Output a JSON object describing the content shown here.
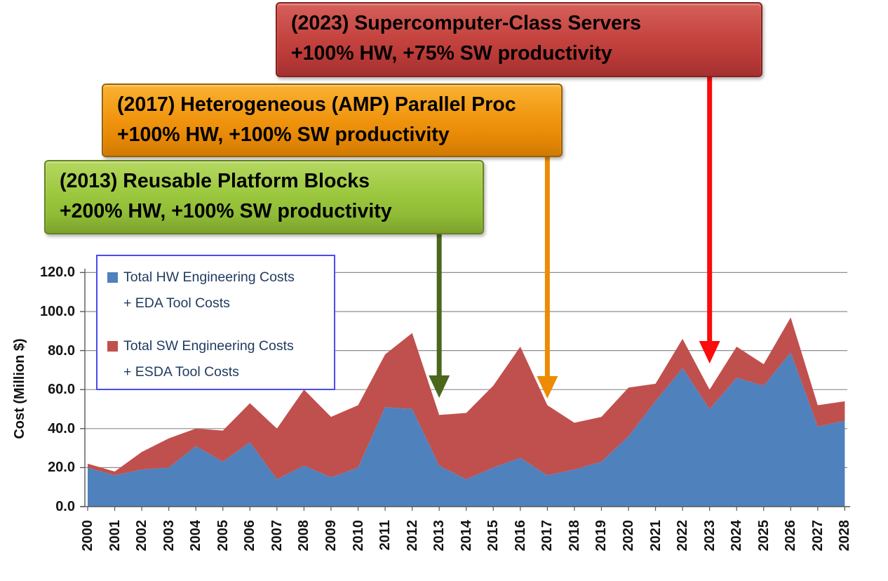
{
  "chart_data": {
    "type": "area",
    "stacked": true,
    "x": [
      2000,
      2001,
      2002,
      2003,
      2004,
      2005,
      2006,
      2007,
      2008,
      2009,
      2010,
      2011,
      2012,
      2013,
      2014,
      2015,
      2016,
      2017,
      2018,
      2019,
      2020,
      2021,
      2022,
      2023,
      2024,
      2025,
      2026,
      2027,
      2028
    ],
    "series": [
      {
        "name": "Total HW Engineering Costs + EDA Tool Costs",
        "color": "#4f81bd",
        "values": [
          20,
          16,
          19,
          20,
          31,
          23,
          33,
          14,
          21,
          15,
          20,
          51,
          50,
          21,
          14,
          20,
          25,
          16,
          19,
          23,
          36,
          54,
          71,
          50,
          66,
          62,
          79,
          41,
          44
        ]
      },
      {
        "name": "Total SW Engineering Costs + ESDA Tool Costs",
        "color": "#c0504d",
        "values": [
          2,
          2,
          9,
          15,
          9,
          16,
          20,
          26,
          39,
          31,
          32,
          27,
          39,
          26,
          34,
          42,
          57,
          36,
          24,
          23,
          25,
          9,
          15,
          10,
          16,
          11,
          18,
          11,
          10
        ]
      }
    ],
    "title": "",
    "xlabel": "",
    "ylabel": "Cost (Million $)",
    "ylim": [
      0,
      120
    ],
    "yticks": [
      0,
      20,
      40,
      60,
      80,
      100,
      120
    ],
    "ytick_labels": [
      "0.0",
      "20.0",
      "40.0",
      "60.0",
      "80.0",
      "100.0",
      "120.0"
    ],
    "grid": "horizontal-only",
    "grid_color": "#8c8c8c",
    "axis_color": "#595959",
    "legend_position": "top-left-inside"
  },
  "legend": {
    "border_color": "#4a4aee",
    "items": [
      {
        "line1": "Total HW Engineering Costs",
        "line2": "+ EDA Tool Costs",
        "color": "#4f81bd"
      },
      {
        "line1": "Total SW Engineering Costs",
        "line2": "+ ESDA Tool Costs",
        "color": "#c0504d"
      }
    ]
  },
  "annotations": [
    {
      "line1": "(2023) Supercomputer-Class Servers",
      "line2": "+100% HW, +75% SW productivity",
      "target_year": "2023",
      "box_color": "#c64541",
      "arrow_color": "#fb0b0b"
    },
    {
      "line1": "(2017) Heterogeneous (AMP) Parallel Proc",
      "line2": "+100% HW, +100% SW productivity",
      "target_year": "2017",
      "box_color": "#f0940e",
      "arrow_color": "#ed8b03"
    },
    {
      "line1": "(2013) Reusable Platform Blocks",
      "line2": "+200% HW, +100% SW productivity",
      "target_year": "2013",
      "box_color": "#9cc83f",
      "arrow_color": "#4b671c"
    }
  ]
}
